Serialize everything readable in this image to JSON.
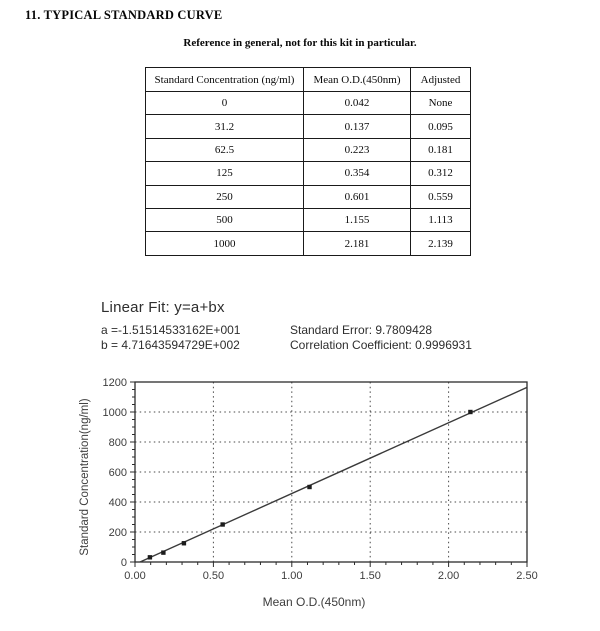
{
  "page": {
    "title": "11. TYPICAL STANDARD CURVE",
    "subtitle": "Reference in general, not for this kit in particular."
  },
  "table": {
    "headers": [
      "Standard Concentration (ng/ml)",
      "Mean O.D.(450nm)",
      "Adjusted"
    ],
    "rows": [
      [
        "0",
        "0.042",
        "None"
      ],
      [
        "31.2",
        "0.137",
        "0.095"
      ],
      [
        "62.5",
        "0.223",
        "0.181"
      ],
      [
        "125",
        "0.354",
        "0.312"
      ],
      [
        "250",
        "0.601",
        "0.559"
      ],
      [
        "500",
        "1.155",
        "1.113"
      ],
      [
        "1000",
        "2.181",
        "2.139"
      ]
    ]
  },
  "fit": {
    "title": "Linear Fit: y=a+bx",
    "a_text": "a =-1.51514533162E+001",
    "b_text": "b = 4.71643594729E+002",
    "standard_error_text": "Standard Error: 9.7809428",
    "correlation_text": "Correlation Coefficient: 0.9996931"
  },
  "chart_data": {
    "type": "scatter",
    "title": "",
    "xlabel": "Mean O.D.(450nm)",
    "ylabel": "Standard Concentration(ng/ml)",
    "xlim": [
      0,
      2.5
    ],
    "ylim": [
      0,
      1200
    ],
    "xticks": [
      0,
      0.5,
      1.0,
      1.5,
      2.0,
      2.5
    ],
    "xtick_labels": [
      "0.00",
      "0.50",
      "1.00",
      "1.50",
      "2.00",
      "2.50"
    ],
    "yticks": [
      0,
      200,
      400,
      600,
      800,
      1000,
      1200
    ],
    "x_minor_step": 0.1,
    "y_minor_step": 50,
    "grid": "dotted",
    "legend": "none",
    "series": [
      {
        "name": "standards",
        "marker": "square",
        "x": [
          0.095,
          0.181,
          0.312,
          0.559,
          1.113,
          2.139
        ],
        "y": [
          31.2,
          62.5,
          125,
          250,
          500,
          1000
        ]
      }
    ],
    "fit_line": {
      "a": -15.1514533162,
      "b": 471.643594729,
      "x_end": 2.5
    },
    "colors": {
      "axis": "#2b2b2b",
      "grid": "#4a4a4a",
      "line": "#3a3a3a",
      "marker": "#1c1c1c",
      "text": "#3d3d3d"
    }
  }
}
